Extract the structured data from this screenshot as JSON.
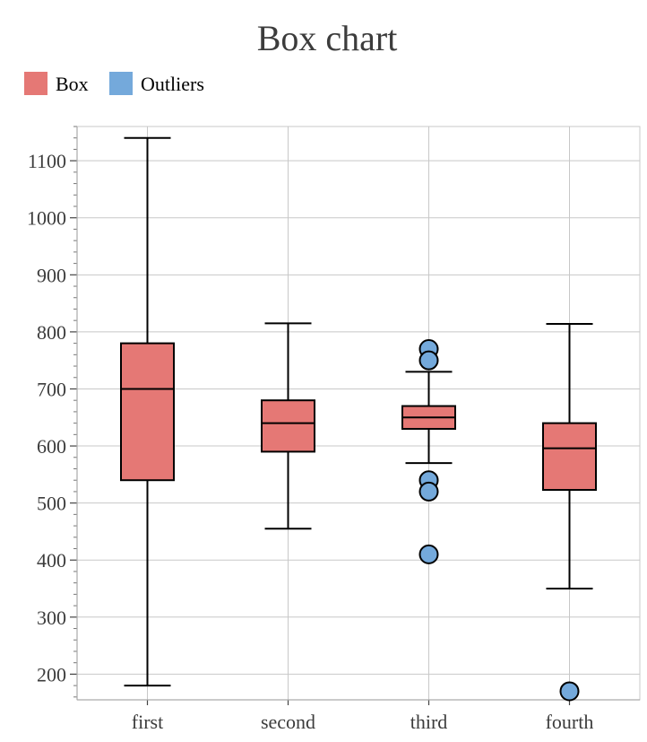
{
  "chart_data": {
    "type": "box",
    "title": "Box chart",
    "categories": [
      "first",
      "second",
      "third",
      "fourth"
    ],
    "legend": {
      "placement": "top-left",
      "entries": [
        {
          "name": "Box",
          "color": "#e57875"
        },
        {
          "name": "Outliers",
          "color": "#74a9db"
        }
      ]
    },
    "boxes": [
      {
        "category": "first",
        "min": 180,
        "q1": 540,
        "median": 700,
        "q3": 780,
        "max": 1140,
        "outliers": []
      },
      {
        "category": "second",
        "min": 455,
        "q1": 590,
        "median": 640,
        "q3": 680,
        "max": 815,
        "outliers": []
      },
      {
        "category": "third",
        "min": 570,
        "q1": 630,
        "median": 650,
        "q3": 670,
        "max": 730,
        "outliers": [
          770,
          750,
          540,
          520,
          410
        ]
      },
      {
        "category": "fourth",
        "min": 350,
        "q1": 523,
        "median": 596,
        "q3": 640,
        "max": 814,
        "outliers": [
          170
        ]
      }
    ],
    "y_ticks": [
      200,
      300,
      400,
      500,
      600,
      700,
      800,
      900,
      1000,
      1100
    ],
    "ylim": [
      155,
      1160
    ],
    "grid": true,
    "colors": {
      "box_fill": "#e57875",
      "outlier_fill": "#74a9db",
      "stroke": "#000000",
      "grid": "#c8c8c8",
      "axis": "#aaaaaa",
      "title": "#3c3c3c"
    }
  }
}
